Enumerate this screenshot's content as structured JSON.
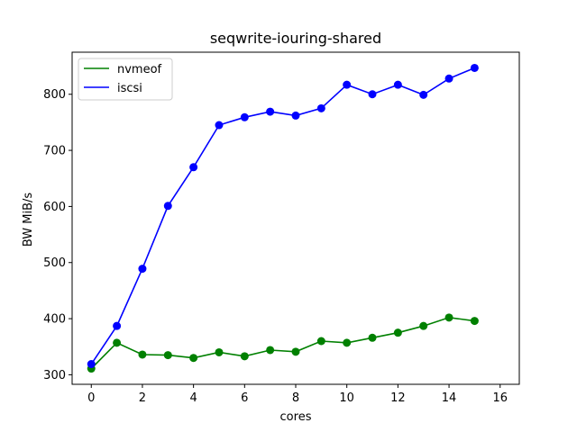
{
  "chart_data": {
    "type": "line",
    "title": "seqwrite-iouring-shared",
    "xlabel": "cores",
    "ylabel": "BW MiB/s",
    "xlim": [
      -0.75,
      16.75
    ],
    "ylim": [
      283,
      875
    ],
    "xticks": [
      0,
      2,
      4,
      6,
      8,
      10,
      12,
      14,
      16
    ],
    "yticks": [
      300,
      400,
      500,
      600,
      700,
      800
    ],
    "grid": false,
    "legend_position": "top-left",
    "x": [
      0,
      1,
      2,
      3,
      4,
      5,
      6,
      7,
      8,
      9,
      10,
      11,
      12,
      13,
      14,
      15
    ],
    "series": [
      {
        "name": "nvmeof",
        "color": "#008000",
        "marker": "circle",
        "values": [
          311,
          357,
          336,
          335,
          330,
          340,
          333,
          344,
          341,
          360,
          357,
          366,
          375,
          387,
          402,
          396
        ]
      },
      {
        "name": "iscsi",
        "color": "#0000ff",
        "marker": "circle",
        "values": [
          319,
          387,
          489,
          601,
          670,
          745,
          759,
          769,
          762,
          775,
          817,
          800,
          817,
          799,
          828,
          847
        ]
      }
    ]
  }
}
